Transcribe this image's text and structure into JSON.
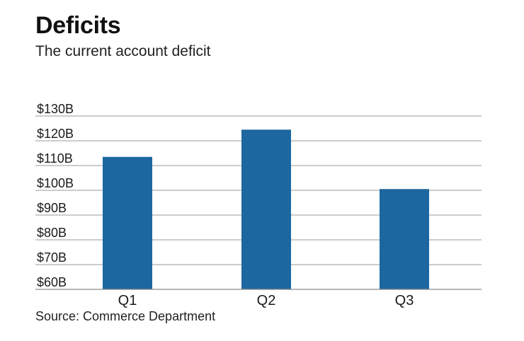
{
  "header": {
    "title": "Deficits",
    "subtitle": "The current account deficit"
  },
  "footer": {
    "source": "Source: Commerce Department"
  },
  "colors": {
    "bar": "#1c67a0",
    "gridline": "#9a9a9a",
    "axis": "#8a8a8a"
  },
  "chart_data": {
    "type": "bar",
    "title": "Deficits",
    "subtitle": "The current account deficit",
    "xlabel": "",
    "ylabel": "",
    "categories": [
      "Q1",
      "Q2",
      "Q3"
    ],
    "values": [
      113.5,
      124.5,
      100.5
    ],
    "unit": "billions of dollars",
    "ylim": [
      60,
      130
    ],
    "yticks": [
      60,
      70,
      80,
      90,
      100,
      110,
      120,
      130
    ],
    "ytick_labels": [
      "$60B",
      "$70B",
      "$80B",
      "$90B",
      "$100B",
      "$110B",
      "$120B",
      "$130B"
    ],
    "grid": true,
    "legend": "none"
  }
}
